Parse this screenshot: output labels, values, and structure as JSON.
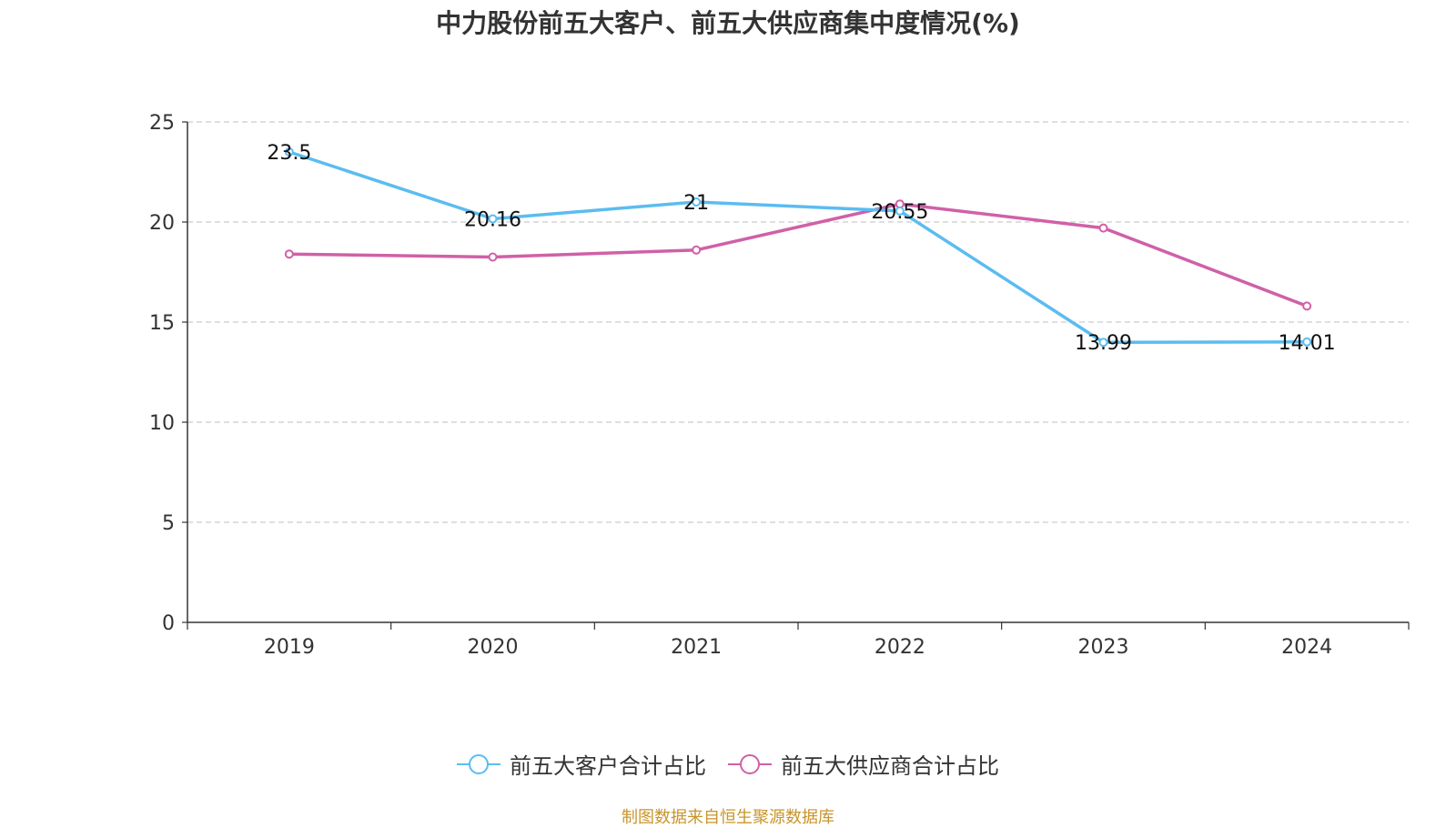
{
  "chart_data": {
    "type": "line",
    "title": "中力股份前五大客户、前五大供应商集中度情况(%)",
    "categories": [
      "2019",
      "2020",
      "2021",
      "2022",
      "2023",
      "2024"
    ],
    "ylim": [
      0,
      25
    ],
    "yticks": [
      0,
      5,
      10,
      15,
      20,
      25
    ],
    "grid": true,
    "legend_position": "bottom",
    "series": [
      {
        "name": "前五大客户合计占比",
        "color": "#5bbcf0",
        "values": [
          23.5,
          20.16,
          21,
          20.55,
          13.99,
          14.01
        ],
        "labels": [
          "23.5",
          "20.16",
          "21",
          "20.55",
          "13.99",
          "14.01"
        ]
      },
      {
        "name": "前五大供应商合计占比",
        "color": "#d060a8",
        "values": [
          18.4,
          18.25,
          18.6,
          20.9,
          19.7,
          15.8
        ],
        "labels": []
      }
    ]
  },
  "source": "制图数据来自恒生聚源数据库"
}
